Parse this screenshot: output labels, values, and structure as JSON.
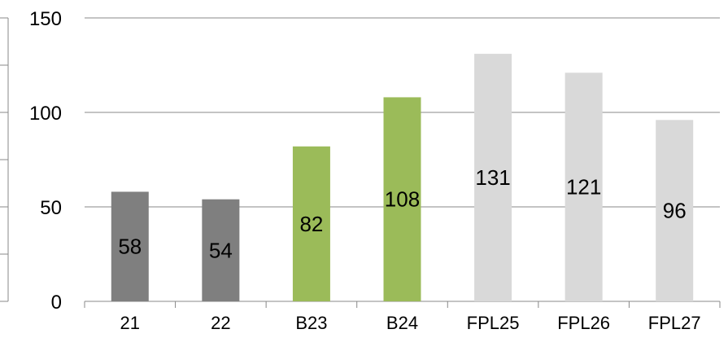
{
  "chart_data": {
    "type": "bar",
    "categories": [
      "21",
      "22",
      "B23",
      "B24",
      "FPL25",
      "FPL26",
      "FPL27"
    ],
    "values": [
      58,
      54,
      82,
      108,
      131,
      121,
      96
    ],
    "data_labels": [
      "58",
      "54",
      "82",
      "108",
      "131",
      "121",
      "96"
    ],
    "bar_colors": [
      "#7f7f7f",
      "#7f7f7f",
      "#9bbb59",
      "#9bbb59",
      "#d9d9d9",
      "#d9d9d9",
      "#d9d9d9"
    ],
    "y_ticks": [
      0,
      50,
      100,
      150
    ],
    "y_tick_labels": [
      "0",
      "50",
      "100",
      "150"
    ],
    "ylim": [
      0,
      150
    ],
    "grid": true,
    "legend": "none",
    "title": "",
    "xlabel": "",
    "ylabel": ""
  }
}
